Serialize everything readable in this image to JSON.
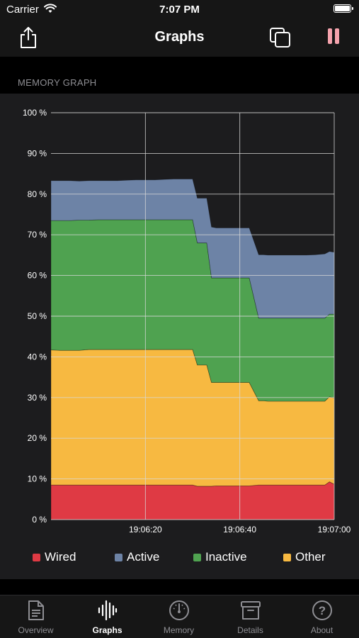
{
  "status": {
    "carrier": "Carrier",
    "time": "7:07 PM"
  },
  "nav": {
    "title": "Graphs"
  },
  "section": {
    "header": "MEMORY GRAPH"
  },
  "colors": {
    "wired": "#df3a44",
    "active": "#6d83a6",
    "inactive": "#4fa250",
    "other": "#f7b941",
    "grid": "#d8d8d8",
    "panel": "#1c1c1e",
    "pause": "#f5a3ad"
  },
  "chart_data": {
    "type": "area",
    "stacked": true,
    "title": "",
    "xlabel": "",
    "ylabel": "",
    "ylim": [
      0,
      100
    ],
    "yticks": [
      "0 %",
      "10 %",
      "20 %",
      "30 %",
      "40 %",
      "50 %",
      "60 %",
      "70 %",
      "80 %",
      "90 %",
      "100 %"
    ],
    "xticks": [
      "19:06:20",
      "19:06:40",
      "19:07:00"
    ],
    "xtick_values": [
      20,
      40,
      60
    ],
    "xlim": [
      0,
      60
    ],
    "grid": true,
    "legend_position": "bottom",
    "x": [
      0,
      2,
      4,
      6,
      8,
      10,
      12,
      14,
      16,
      18,
      20,
      22,
      24,
      26,
      28,
      30,
      31,
      32,
      33,
      34,
      35,
      36,
      38,
      40,
      42,
      44,
      45,
      46,
      48,
      50,
      52,
      54,
      56,
      58,
      59,
      60
    ],
    "series": [
      {
        "name": "Wired",
        "color": "#df3a44",
        "values": [
          8.5,
          8.5,
          8.5,
          8.5,
          8.5,
          8.5,
          8.5,
          8.5,
          8.5,
          8.5,
          8.5,
          8.5,
          8.5,
          8.5,
          8.5,
          8.5,
          8.2,
          8.2,
          8.2,
          8.2,
          8.3,
          8.3,
          8.3,
          8.3,
          8.3,
          8.5,
          8.5,
          8.5,
          8.5,
          8.5,
          8.5,
          8.5,
          8.5,
          8.5,
          9.3,
          8.7
        ]
      },
      {
        "name": "Other",
        "color": "#f7b941",
        "values": [
          33.2,
          33.1,
          33.1,
          33.1,
          33.3,
          33.3,
          33.3,
          33.3,
          33.3,
          33.3,
          33.3,
          33.3,
          33.3,
          33.3,
          33.3,
          33.3,
          29.8,
          29.8,
          29.8,
          25.5,
          25.4,
          25.4,
          25.4,
          25.4,
          25.4,
          20.7,
          20.7,
          20.6,
          20.6,
          20.6,
          20.6,
          20.6,
          20.6,
          20.6,
          20.9,
          21.2
        ]
      },
      {
        "name": "Inactive",
        "color": "#4fa250",
        "values": [
          31.8,
          31.9,
          31.9,
          32,
          31.8,
          31.9,
          31.9,
          31.9,
          31.9,
          31.9,
          31.9,
          31.9,
          31.9,
          31.9,
          31.9,
          31.9,
          30.0,
          30.0,
          30.0,
          25.7,
          25.7,
          25.7,
          25.7,
          25.7,
          25.7,
          20.3,
          20.3,
          20.4,
          20.4,
          20.4,
          20.4,
          20.4,
          20.4,
          20.4,
          20.3,
          20.6
        ]
      },
      {
        "name": "Active",
        "color": "#6d83a6",
        "values": [
          9.8,
          9.8,
          9.8,
          9.6,
          9.7,
          9.6,
          9.6,
          9.6,
          9.7,
          9.8,
          9.8,
          9.8,
          9.9,
          10.0,
          10.0,
          10.0,
          11.0,
          11.0,
          11.0,
          12.5,
          12.3,
          12.3,
          12.3,
          12.3,
          12.3,
          15.6,
          15.6,
          15.5,
          15.5,
          15.5,
          15.5,
          15.5,
          15.6,
          15.8,
          15.4,
          15.2
        ]
      }
    ],
    "legend": [
      "Wired",
      "Active",
      "Inactive",
      "Other"
    ]
  },
  "tabs": [
    {
      "label": "Overview",
      "icon": "document-icon",
      "active": false
    },
    {
      "label": "Graphs",
      "icon": "waveform-icon",
      "active": true
    },
    {
      "label": "Memory",
      "icon": "gauge-icon",
      "active": false
    },
    {
      "label": "Details",
      "icon": "archive-box-icon",
      "active": false
    },
    {
      "label": "About",
      "icon": "question-circle-icon",
      "active": false
    }
  ]
}
